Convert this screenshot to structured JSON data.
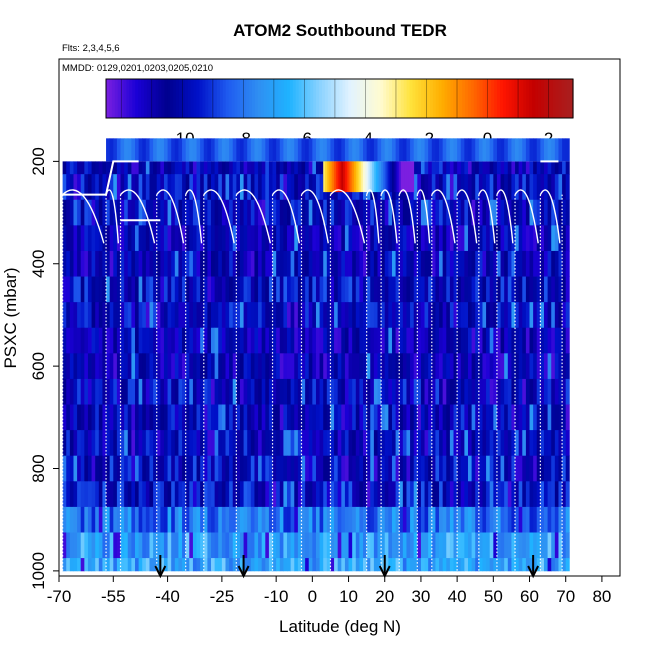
{
  "chart_data": {
    "type": "heatmap",
    "title": "ATOM2 Southbound TEDR",
    "notes": [
      "Flts: 2,3,4,5,6",
      "MMDD: 0129,0201,0203,0205,0210"
    ],
    "xlabel": "Latitude (deg N)",
    "ylabel": "PSXC (mbar)",
    "xlim": [
      -70,
      85
    ],
    "ylim": [
      1010,
      0
    ],
    "x_ticks": [
      -70,
      -55,
      -40,
      -25,
      -10,
      0,
      10,
      20,
      30,
      40,
      50,
      60,
      70,
      80
    ],
    "x_tick_labels": [
      "-70",
      "-55",
      "-40",
      "-25",
      "-10",
      "0",
      "10",
      "20",
      "30",
      "40",
      "50",
      "60",
      "70",
      "80"
    ],
    "y_ticks": [
      200,
      400,
      600,
      800,
      1000
    ],
    "y_tick_labels": [
      "200",
      "400",
      "600",
      "800",
      "1000"
    ],
    "colorbar": {
      "range": [
        -12.5,
        2.8
      ],
      "ticks": [
        -10,
        -8,
        -6,
        -4,
        -2,
        0,
        2
      ],
      "tick_labels": [
        "-10",
        "-8",
        "-6",
        "-4",
        "-2",
        "0",
        "2"
      ],
      "stops": [
        {
          "v": -12.5,
          "c": "#7b1fe0"
        },
        {
          "v": -11.5,
          "c": "#1a00d6"
        },
        {
          "v": -10.5,
          "c": "#00008e"
        },
        {
          "v": -9.5,
          "c": "#0010c8"
        },
        {
          "v": -8.5,
          "c": "#1f5cf0"
        },
        {
          "v": -7.5,
          "c": "#2f8ff2"
        },
        {
          "v": -6.5,
          "c": "#1fb3ff"
        },
        {
          "v": -5.5,
          "c": "#8ad2ff"
        },
        {
          "v": -4.5,
          "c": "#e2f3ff"
        },
        {
          "v": -3.5,
          "c": "#fffbd0"
        },
        {
          "v": -2.5,
          "c": "#ffe23a"
        },
        {
          "v": -1.5,
          "c": "#ffae00"
        },
        {
          "v": -0.5,
          "c": "#ff6a00"
        },
        {
          "v": 0.5,
          "c": "#ff1500"
        },
        {
          "v": 1.5,
          "c": "#c40000"
        },
        {
          "v": 2.8,
          "c": "#a82020"
        }
      ]
    },
    "pressure_levels": [
      200,
      250,
      300,
      350,
      400,
      450,
      500,
      550,
      600,
      650,
      700,
      750,
      800,
      850,
      900,
      950,
      1000
    ],
    "lat_range": [
      -69,
      71
    ],
    "top_band": {
      "lat": [
        -57,
        71
      ],
      "p": [
        155,
        200
      ],
      "value": -8.4
    },
    "hot_spot": {
      "lat": [
        3,
        28
      ],
      "p": [
        200,
        260
      ],
      "peak_lat": 8,
      "peak_value": 1.5
    },
    "arrows_lat": [
      -42,
      -19,
      20,
      61
    ],
    "flight_profiles_lat": [
      -69,
      -57,
      -53,
      -43,
      -35,
      -30,
      -21,
      -11,
      -3,
      5,
      15,
      19,
      24,
      29,
      33,
      40,
      46,
      51,
      56,
      63,
      69
    ]
  }
}
